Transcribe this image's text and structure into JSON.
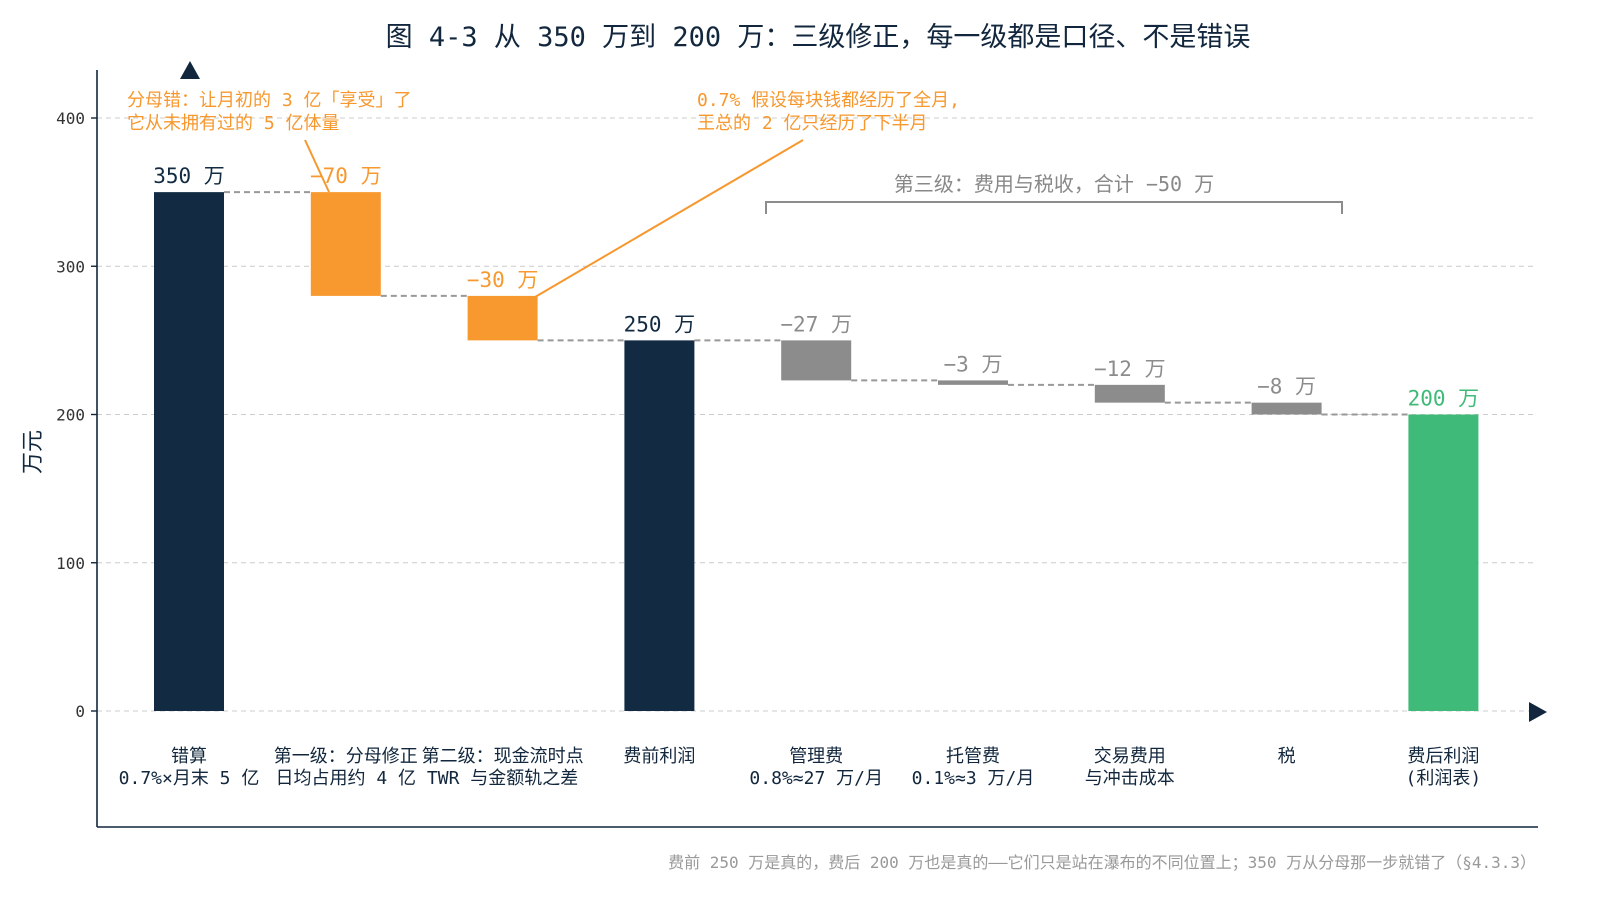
{
  "colors": {
    "total": "#122b42",
    "orange": "#f7992f",
    "gray": "#8c8c8c",
    "green": "#3fba78",
    "axis": "#12273d",
    "grid": "#cccccc",
    "connector": "#999999",
    "bracket_text": "#888888",
    "footnote": "#999999"
  },
  "chart_data": {
    "type": "bar",
    "subtype": "waterfall",
    "title": "图 4-3 从 350 万到 200 万：三级修正，每一级都是口径、不是错误",
    "ylabel": "万元",
    "ylim": [
      -77,
      432
    ],
    "yticks": [
      0,
      100,
      200,
      300,
      400
    ],
    "grid": true,
    "bars": [
      {
        "line1": "错算",
        "line2": "0.7%×月末 5 亿",
        "value": 350,
        "label": "350 万",
        "kind": "total",
        "color_key": "total"
      },
      {
        "line1": "第一级：分母修正",
        "line2": "日均占用约 4 亿",
        "value": -70,
        "label": "−70 万",
        "kind": "delta",
        "color_key": "orange"
      },
      {
        "line1": "第二级：现金流时点",
        "line2": "TWR 与金额轨之差",
        "value": -30,
        "label": "−30 万",
        "kind": "delta",
        "color_key": "orange"
      },
      {
        "line1": "费前利润",
        "line2": "",
        "value": 250,
        "label": "250 万",
        "kind": "total",
        "color_key": "total"
      },
      {
        "line1": "管理费",
        "line2": "0.8%≈27 万/月",
        "value": -27,
        "label": "−27 万",
        "kind": "delta",
        "color_key": "gray"
      },
      {
        "line1": "托管费",
        "line2": "0.1%≈3 万/月",
        "value": -3,
        "label": "−3 万",
        "kind": "delta",
        "color_key": "gray"
      },
      {
        "line1": "交易费用",
        "line2": "与冲击成本",
        "value": -12,
        "label": "−12 万",
        "kind": "delta",
        "color_key": "gray"
      },
      {
        "line1": "税",
        "line2": "",
        "value": -8,
        "label": "−8 万",
        "kind": "delta",
        "color_key": "gray"
      },
      {
        "line1": "费后利润",
        "line2": "(利润表)",
        "value": 200,
        "label": "200 万",
        "kind": "total",
        "color_key": "green"
      }
    ],
    "annotations": [
      {
        "lines": [
          "分母错：让月初的 3 亿「享受」了",
          "它从未拥有过的 5 亿体量"
        ],
        "target_bar": 1
      },
      {
        "lines": [
          "0.7% 假设每块钱都经历了全月,",
          "王总的 2 亿只经历了下半月"
        ],
        "target_bar": 2
      }
    ],
    "bracket": {
      "label": "第三级：费用与税收，合计 −50 万",
      "from_bar": 4,
      "to_bar": 7
    }
  },
  "footnote": "费前 250 万是真的，费后 200 万也是真的——它们只是站在瀑布的不同位置上；350 万从分母那一步就错了（§4.3.3）"
}
